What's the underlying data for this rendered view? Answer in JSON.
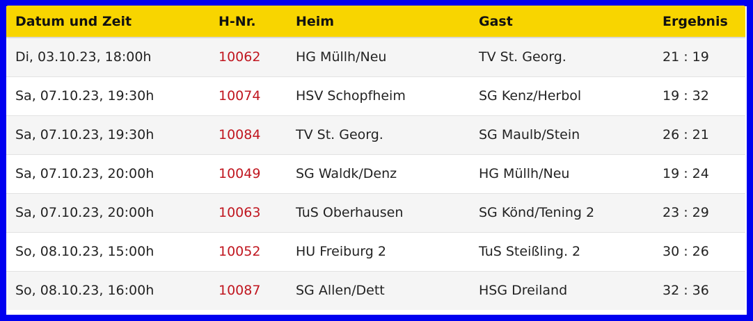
{
  "table": {
    "headers": [
      "Datum und Zeit",
      "H-Nr.",
      "Heim",
      "Gast",
      "Ergebnis"
    ],
    "rows": [
      {
        "datetime": "Di, 03.10.23, 18:00h",
        "hnr": "10062",
        "home": "HG Müllh/Neu",
        "guest": "TV St. Georg.",
        "result": "21 : 19"
      },
      {
        "datetime": "Sa, 07.10.23, 19:30h",
        "hnr": "10074",
        "home": "HSV Schopfheim",
        "guest": "SG Kenz/Herbol",
        "result": "19 : 32"
      },
      {
        "datetime": "Sa, 07.10.23, 19:30h",
        "hnr": "10084",
        "home": "TV St. Georg.",
        "guest": "SG Maulb/Stein",
        "result": "26 : 21"
      },
      {
        "datetime": "Sa, 07.10.23, 20:00h",
        "hnr": "10049",
        "home": "SG Waldk/Denz",
        "guest": "HG Müllh/Neu",
        "result": "19 : 24"
      },
      {
        "datetime": "Sa, 07.10.23, 20:00h",
        "hnr": "10063",
        "home": "TuS Oberhausen",
        "guest": "SG Könd/Tening 2",
        "result": "23 : 29"
      },
      {
        "datetime": "So, 08.10.23, 15:00h",
        "hnr": "10052",
        "home": "HU Freiburg 2",
        "guest": "TuS Steißling. 2",
        "result": "30 : 26"
      },
      {
        "datetime": "So, 08.10.23, 16:00h",
        "hnr": "10087",
        "home": "SG Allen/Dett",
        "guest": "HSG Dreiland",
        "result": "32 : 36"
      }
    ]
  },
  "colors": {
    "header_bg": "#f8d500",
    "frame_border": "#0000f0",
    "game_number": "#c0161f"
  }
}
